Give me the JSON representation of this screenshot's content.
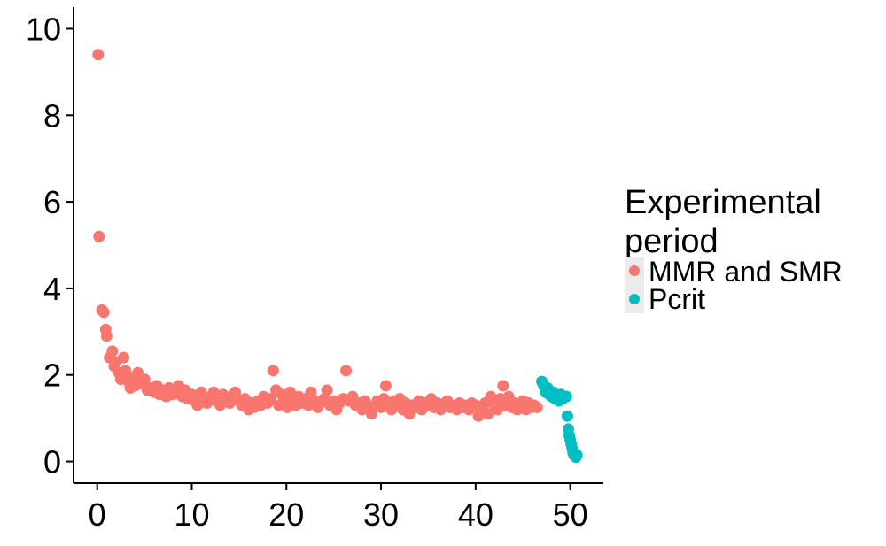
{
  "chart_data": {
    "type": "scatter",
    "title": "",
    "xlabel": "",
    "ylabel": "",
    "xlim": [
      -2.5,
      53.5
    ],
    "ylim": [
      -0.5,
      10.5
    ],
    "x_ticks": [
      0,
      10,
      20,
      30,
      40,
      50
    ],
    "y_ticks": [
      0,
      2,
      4,
      6,
      8,
      10
    ],
    "grid": false,
    "legend": {
      "title": "Experimental period",
      "title_lines": [
        "Experimental",
        "period"
      ],
      "position": "right"
    },
    "series": [
      {
        "name": "MMR and SMR",
        "color": "#F8766D",
        "points": [
          [
            0.1,
            9.4
          ],
          [
            0.2,
            5.2
          ],
          [
            0.5,
            3.5
          ],
          [
            0.7,
            3.45
          ],
          [
            0.9,
            3.05
          ],
          [
            1.0,
            2.9
          ],
          [
            1.3,
            2.4
          ],
          [
            1.6,
            2.55
          ],
          [
            1.8,
            2.2
          ],
          [
            2.0,
            2.3
          ],
          [
            2.3,
            2.05
          ],
          [
            2.5,
            1.9
          ],
          [
            2.8,
            2.4
          ],
          [
            3.0,
            2.1
          ],
          [
            3.3,
            1.85
          ],
          [
            3.5,
            1.7
          ],
          [
            3.8,
            1.95
          ],
          [
            4.0,
            1.75
          ],
          [
            4.3,
            2.05
          ],
          [
            4.6,
            1.8
          ],
          [
            5.0,
            1.9
          ],
          [
            5.3,
            1.65
          ],
          [
            5.6,
            1.7
          ],
          [
            6.0,
            1.6
          ],
          [
            6.3,
            1.75
          ],
          [
            6.6,
            1.55
          ],
          [
            7.0,
            1.65
          ],
          [
            7.3,
            1.5
          ],
          [
            7.6,
            1.7
          ],
          [
            8.0,
            1.55
          ],
          [
            8.3,
            1.6
          ],
          [
            8.6,
            1.75
          ],
          [
            9.0,
            1.5
          ],
          [
            9.3,
            1.65
          ],
          [
            9.6,
            1.45
          ],
          [
            10.0,
            1.55
          ],
          [
            10.3,
            1.4
          ],
          [
            10.6,
            1.3
          ],
          [
            11.0,
            1.6
          ],
          [
            11.3,
            1.45
          ],
          [
            11.6,
            1.35
          ],
          [
            12.0,
            1.5
          ],
          [
            12.3,
            1.6
          ],
          [
            12.6,
            1.4
          ],
          [
            13.0,
            1.3
          ],
          [
            13.3,
            1.55
          ],
          [
            13.6,
            1.45
          ],
          [
            14.0,
            1.35
          ],
          [
            14.3,
            1.5
          ],
          [
            14.6,
            1.6
          ],
          [
            15.0,
            1.4
          ],
          [
            15.3,
            1.3
          ],
          [
            15.6,
            1.45
          ],
          [
            16.0,
            1.2
          ],
          [
            16.3,
            1.35
          ],
          [
            16.6,
            1.25
          ],
          [
            17.0,
            1.4
          ],
          [
            17.3,
            1.3
          ],
          [
            17.6,
            1.5
          ],
          [
            18.0,
            1.35
          ],
          [
            18.3,
            1.45
          ],
          [
            18.6,
            2.1
          ],
          [
            18.9,
            1.65
          ],
          [
            19.2,
            1.3
          ],
          [
            19.5,
            1.55
          ],
          [
            19.8,
            1.4
          ],
          [
            20.1,
            1.25
          ],
          [
            20.4,
            1.6
          ],
          [
            20.7,
            1.45
          ],
          [
            21.0,
            1.3
          ],
          [
            21.3,
            1.5
          ],
          [
            21.6,
            1.35
          ],
          [
            22.0,
            1.45
          ],
          [
            22.3,
            1.3
          ],
          [
            22.6,
            1.6
          ],
          [
            23.0,
            1.4
          ],
          [
            23.3,
            1.25
          ],
          [
            23.6,
            1.35
          ],
          [
            24.0,
            1.45
          ],
          [
            24.3,
            1.65
          ],
          [
            24.6,
            1.3
          ],
          [
            25.0,
            1.4
          ],
          [
            25.3,
            1.2
          ],
          [
            25.6,
            1.35
          ],
          [
            26.0,
            1.45
          ],
          [
            26.3,
            2.1
          ],
          [
            26.6,
            1.4
          ],
          [
            27.0,
            1.5
          ],
          [
            27.3,
            1.3
          ],
          [
            27.6,
            1.35
          ],
          [
            28.0,
            1.2
          ],
          [
            28.3,
            1.4
          ],
          [
            28.6,
            1.25
          ],
          [
            29.0,
            1.1
          ],
          [
            29.3,
            1.3
          ],
          [
            29.6,
            1.4
          ],
          [
            30.0,
            1.25
          ],
          [
            30.3,
            1.45
          ],
          [
            30.5,
            1.75
          ],
          [
            30.8,
            1.3
          ],
          [
            31.1,
            1.2
          ],
          [
            31.4,
            1.4
          ],
          [
            31.7,
            1.3
          ],
          [
            32.0,
            1.45
          ],
          [
            32.3,
            1.2
          ],
          [
            32.6,
            1.35
          ],
          [
            33.0,
            1.1
          ],
          [
            33.3,
            1.3
          ],
          [
            33.6,
            1.25
          ],
          [
            34.0,
            1.4
          ],
          [
            34.3,
            1.2
          ],
          [
            34.6,
            1.35
          ],
          [
            35.0,
            1.3
          ],
          [
            35.3,
            1.45
          ],
          [
            35.6,
            1.25
          ],
          [
            36.0,
            1.35
          ],
          [
            36.3,
            1.2
          ],
          [
            36.6,
            1.3
          ],
          [
            37.0,
            1.4
          ],
          [
            37.3,
            1.25
          ],
          [
            37.6,
            1.3
          ],
          [
            38.0,
            1.2
          ],
          [
            38.3,
            1.35
          ],
          [
            38.6,
            1.25
          ],
          [
            39.0,
            1.3
          ],
          [
            39.3,
            1.2
          ],
          [
            39.6,
            1.35
          ],
          [
            40.0,
            1.3
          ],
          [
            40.3,
            1.05
          ],
          [
            40.6,
            1.25
          ],
          [
            41.0,
            1.35
          ],
          [
            41.3,
            1.1
          ],
          [
            41.6,
            1.5
          ],
          [
            42.0,
            1.3
          ],
          [
            42.3,
            1.2
          ],
          [
            42.6,
            1.45
          ],
          [
            42.9,
            1.75
          ],
          [
            43.2,
            1.3
          ],
          [
            43.5,
            1.5
          ],
          [
            43.8,
            1.25
          ],
          [
            44.1,
            1.35
          ],
          [
            44.4,
            1.2
          ],
          [
            44.7,
            1.3
          ],
          [
            45.0,
            1.4
          ],
          [
            45.3,
            1.2
          ],
          [
            45.6,
            1.35
          ],
          [
            45.9,
            1.25
          ],
          [
            46.2,
            1.3
          ],
          [
            46.5,
            1.25
          ]
        ]
      },
      {
        "name": "Pcrit",
        "color": "#00BFC4",
        "points": [
          [
            47.0,
            1.85
          ],
          [
            47.2,
            1.75
          ],
          [
            47.4,
            1.6
          ],
          [
            47.6,
            1.7
          ],
          [
            47.8,
            1.55
          ],
          [
            48.0,
            1.5
          ],
          [
            48.2,
            1.6
          ],
          [
            48.4,
            1.45
          ],
          [
            48.6,
            1.5
          ],
          [
            48.8,
            1.4
          ],
          [
            49.0,
            1.55
          ],
          [
            49.2,
            1.45
          ],
          [
            49.4,
            1.5
          ],
          [
            49.6,
            1.5
          ],
          [
            49.7,
            1.05
          ],
          [
            49.8,
            0.75
          ],
          [
            49.9,
            0.6
          ],
          [
            50.0,
            0.5
          ],
          [
            50.1,
            0.4
          ],
          [
            50.2,
            0.3
          ],
          [
            50.3,
            0.2
          ],
          [
            50.4,
            0.15
          ],
          [
            50.6,
            0.1
          ],
          [
            50.7,
            0.15
          ]
        ]
      }
    ]
  }
}
